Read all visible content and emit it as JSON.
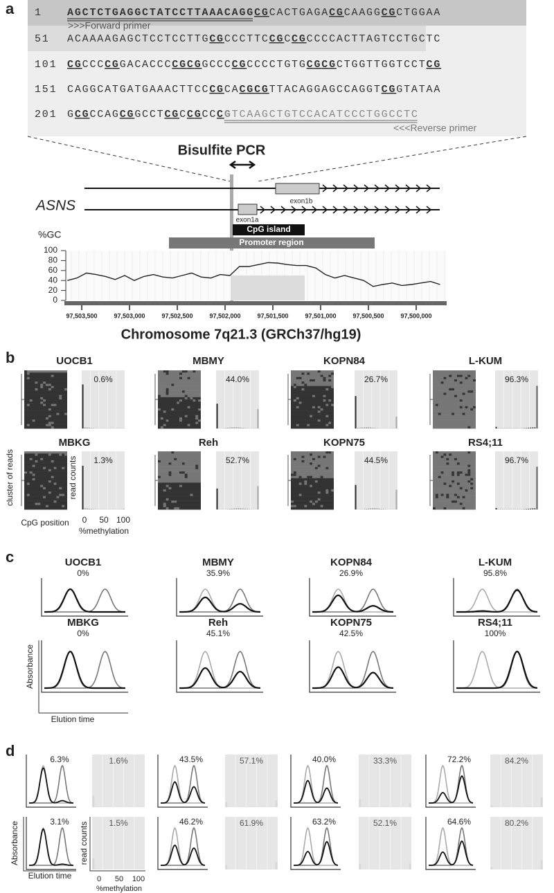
{
  "panel_labels": [
    "a",
    "b",
    "c",
    "d"
  ],
  "sequence": {
    "rows": [
      {
        "number": "1",
        "groups": [
          "AGCTCTGAGG",
          "CTATCCTTAA",
          "ACAGGCGCAC",
          "TGAGACGCAA",
          "GGCGCTGGAA"
        ]
      },
      {
        "number": "51",
        "groups": [
          "ACAAAAGAGC",
          "TCCTCCTTGC",
          "GCCCTTCCGC",
          "CGCCCCACTT",
          "AGTCCTGCTC"
        ]
      },
      {
        "number": "101",
        "groups": [
          "CGCCCCGGAC",
          "ACCCCGCGGC",
          "CCCGCCCCTG",
          "TGCGCGCTGG",
          "TTGGTCCTCG"
        ]
      },
      {
        "number": "151",
        "groups": [
          "CAGGCATGAT",
          "GAAACTTCCC",
          "GCACGCGTTA",
          "CAGGAGCCAG",
          "GTCGGTATAA"
        ]
      },
      {
        "number": "201",
        "groups": [
          "GCGCCAGCGG",
          "CCTCGCCGCC",
          "CGTCAAGCTG",
          "TCCACATCCC",
          "TGGCCTC"
        ]
      }
    ],
    "forward_primer": ">>>Forward primer",
    "reverse_primer": "<<<Reverse primer"
  },
  "pcr_label": "Bisulfite PCR",
  "gene": {
    "name": "ASNS",
    "exon_1b": "exon1b",
    "exon_1a": "exon1a",
    "cpg_island": "CpG island",
    "promoter": "Promoter region"
  },
  "chart_data": {
    "type": "line",
    "y_label": "%GC",
    "x_label": "Chromosome 7q21.3 (GRCh37/hg19)",
    "color": "#222222",
    "x": [
      97503650,
      97503550,
      97503450,
      97503350,
      97503250,
      97503150,
      97503050,
      97502950,
      97502850,
      97502750,
      97502650,
      97502550,
      97502450,
      97502350,
      97502250,
      97502150,
      97502050,
      97501950,
      97501850,
      97501750,
      97501650,
      97501550,
      97501450,
      97501350,
      97501250,
      97501150,
      97501050,
      97500950,
      97500850,
      97500750,
      97500650,
      97500550,
      97500450,
      97500350,
      97500250,
      97500150,
      97500050,
      97499950,
      97499850,
      97499750
    ],
    "values": [
      40,
      45,
      55,
      52,
      48,
      42,
      50,
      40,
      48,
      52,
      47,
      45,
      50,
      55,
      47,
      45,
      52,
      50,
      68,
      68,
      72,
      76,
      75,
      72,
      70,
      70,
      65,
      52,
      45,
      50,
      45,
      40,
      28,
      32,
      35,
      30,
      32,
      35,
      38,
      32
    ],
    "xlim": [
      97503667,
      97499681
    ],
    "ylim": [
      0,
      100
    ],
    "yticks": [
      0,
      20,
      40,
      60,
      80,
      100
    ],
    "xticks": [
      {
        "value": 97503500,
        "label": "97,503,500"
      },
      {
        "value": 97503000,
        "label": "97,503,000"
      },
      {
        "value": 97502500,
        "label": "97,502,500"
      },
      {
        "value": 97502000,
        "label": "97,502,000"
      },
      {
        "value": 97501500,
        "label": "97,501,500"
      },
      {
        "value": 97501000,
        "label": "97,501,000"
      },
      {
        "value": 97500500,
        "label": "97,500,500"
      },
      {
        "value": 97500000,
        "label": "97,500,000"
      }
    ]
  },
  "b": {
    "panels": [
      {
        "name": "UOCB1",
        "percent": "0.6%"
      },
      {
        "name": "MBMY",
        "percent": "44.0%"
      },
      {
        "name": "KOPN84",
        "percent": "26.7%"
      },
      {
        "name": "L-KUM",
        "percent": "96.3%"
      },
      {
        "name": "MBKG",
        "percent": "1.3%"
      },
      {
        "name": "Reh",
        "percent": "52.7%"
      },
      {
        "name": "KOPN75",
        "percent": "44.5%"
      },
      {
        "name": "RS4;11",
        "percent": "96.7%"
      }
    ],
    "y_label_heatmap": "cluster of reads",
    "x_label_heatmap": "CpG position",
    "y_label_hist": "read counts",
    "x_ticks_hist": [
      "0",
      "50",
      "100"
    ],
    "x_label_hist": "%methylation"
  },
  "c": {
    "panels": [
      {
        "name": "UOCB1",
        "percent": "0%"
      },
      {
        "name": "MBMY",
        "percent": "35.9%"
      },
      {
        "name": "KOPN84",
        "percent": "26.9%"
      },
      {
        "name": "L-KUM",
        "percent": "95.8%"
      },
      {
        "name": "MBKG",
        "percent": "0%"
      },
      {
        "name": "Reh",
        "percent": "45.1%"
      },
      {
        "name": "KOPN75",
        "percent": "42.5%"
      },
      {
        "name": "RS4;11",
        "percent": "100%"
      }
    ],
    "y_label": "Absorbance",
    "x_label": "Elution time"
  },
  "d": {
    "panels": [
      {
        "hplc": "6.3%",
        "ngs": "1.6%"
      },
      {
        "hplc": "43.5%",
        "ngs": "57.1%"
      },
      {
        "hplc": "40.0%",
        "ngs": "33.3%"
      },
      {
        "hplc": "72.2%",
        "ngs": "84.2%"
      },
      {
        "hplc": "3.1%",
        "ngs": "1.5%"
      },
      {
        "hplc": "46.2%",
        "ngs": "61.9%"
      },
      {
        "hplc": "63.2%",
        "ngs": "52.1%"
      },
      {
        "hplc": "64.6%",
        "ngs": "80.2%"
      }
    ],
    "y_label_hplc": "Absorbance",
    "x_label_hplc": "Elution time",
    "y_label_hist": "read counts",
    "x_ticks_hist": [
      "0",
      "50",
      "100"
    ],
    "x_label_hist": "%methylation"
  }
}
